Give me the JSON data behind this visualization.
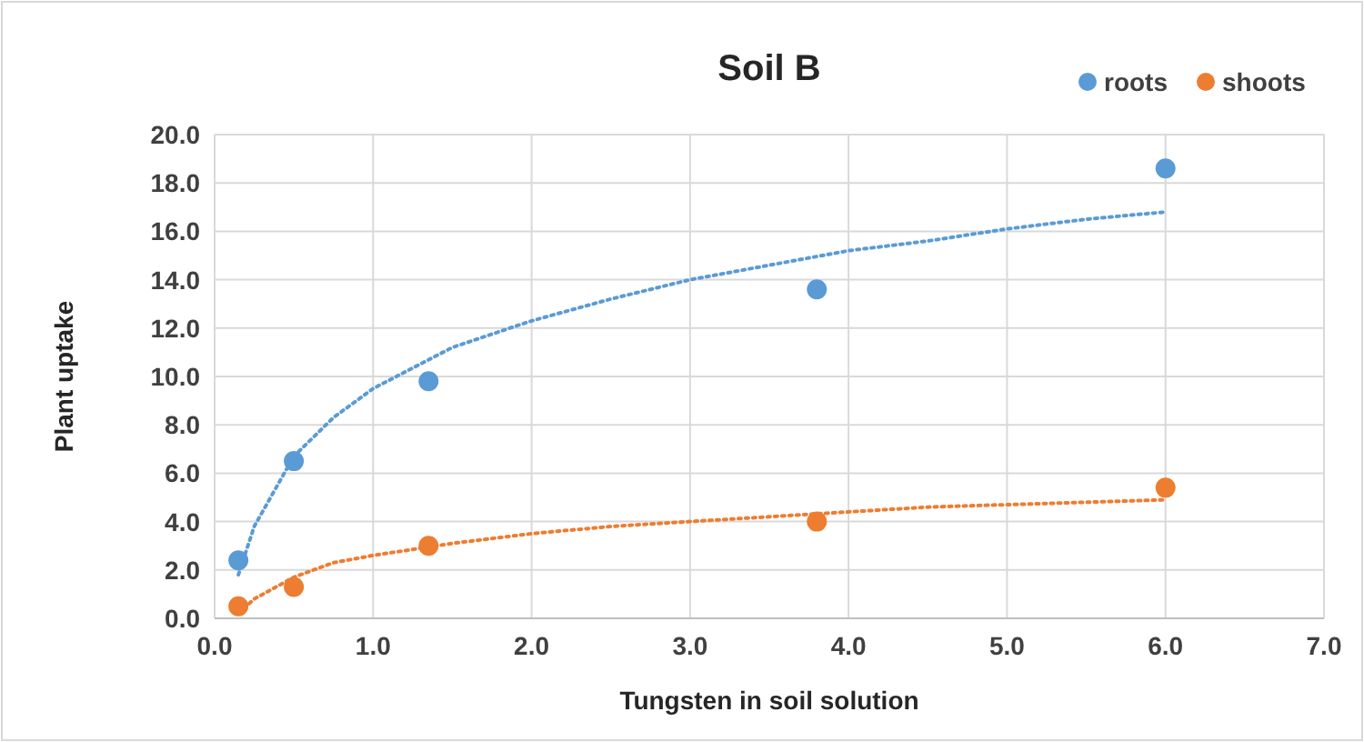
{
  "chart_data": {
    "type": "scatter",
    "title": "Soil B",
    "xlabel": "Tungsten in soil solution",
    "ylabel": "Plant uptake",
    "xlim": [
      0,
      7
    ],
    "xticks": [
      {
        "value": 0,
        "label": "0.0"
      },
      {
        "value": 1,
        "label": "1.0"
      },
      {
        "value": 2,
        "label": "2.0"
      },
      {
        "value": 3,
        "label": "3.0"
      },
      {
        "value": 4,
        "label": "4.0"
      },
      {
        "value": 5,
        "label": "5.0"
      },
      {
        "value": 6,
        "label": "6.0"
      },
      {
        "value": 7,
        "label": "7.0"
      }
    ],
    "ylim": [
      0,
      20
    ],
    "yticks": [
      {
        "value": 0,
        "label": "0.0"
      },
      {
        "value": 2,
        "label": "2.0"
      },
      {
        "value": 4,
        "label": "4.0"
      },
      {
        "value": 6,
        "label": "6.0"
      },
      {
        "value": 8,
        "label": "8.0"
      },
      {
        "value": 10,
        "label": "10.0"
      },
      {
        "value": 12,
        "label": "12.0"
      },
      {
        "value": 14,
        "label": "14.0"
      },
      {
        "value": 16,
        "label": "16.0"
      },
      {
        "value": 18,
        "label": "18.0"
      },
      {
        "value": 20,
        "label": "20.0"
      }
    ],
    "grid": true,
    "legend": "top right",
    "marker": "circle",
    "series": [
      {
        "type": "line",
        "color": "#5b9bd5",
        "line_style": "dotted",
        "marker": "none",
        "x": [
          0.15,
          0.25,
          0.5,
          0.75,
          1,
          1.5,
          2,
          2.5,
          3,
          3.5,
          4,
          4.5,
          5,
          5.5,
          6
        ],
        "values": [
          1.8,
          3.8,
          6.7,
          8.3,
          9.5,
          11.2,
          12.3,
          13.2,
          14.0,
          14.6,
          15.2,
          15.6,
          16.1,
          16.5,
          16.8
        ]
      },
      {
        "type": "line",
        "color": "#ed7d31",
        "line_style": "dotted",
        "marker": "none",
        "x": [
          0.15,
          0.25,
          0.5,
          0.75,
          1,
          1.5,
          2,
          2.5,
          3,
          3.5,
          4,
          4.5,
          5,
          5.5,
          6
        ],
        "values": [
          0.2,
          0.8,
          1.7,
          2.3,
          2.6,
          3.1,
          3.5,
          3.8,
          4.0,
          4.2,
          4.4,
          4.6,
          4.7,
          4.8,
          4.9
        ]
      },
      {
        "name": "roots",
        "color": "#5b9bd5",
        "x": [
          0.15,
          0.5,
          1.35,
          3.8,
          6.0
        ],
        "values": [
          2.4,
          6.5,
          9.8,
          13.6,
          18.6
        ]
      },
      {
        "name": "shoots",
        "color": "#ed7d31",
        "x": [
          0.15,
          0.5,
          1.35,
          3.8,
          6.0
        ],
        "values": [
          0.5,
          1.3,
          3.0,
          4.0,
          5.4
        ]
      }
    ]
  }
}
